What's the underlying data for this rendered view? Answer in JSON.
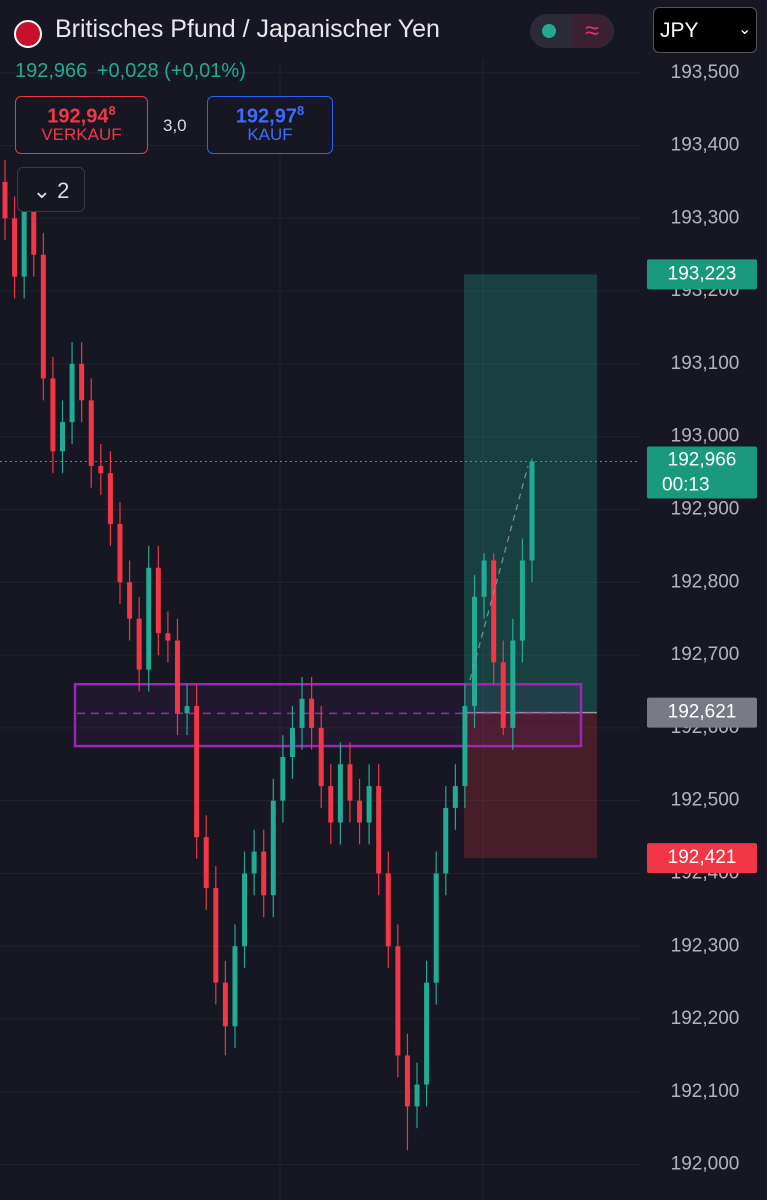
{
  "header": {
    "title": "Britisches Pfund / Japanischer Yen",
    "last": "192,966",
    "change": "+0,028 (+0,01%)",
    "sell_price": "192,94",
    "sell_digit": "8",
    "sell_label": "VERKAUF",
    "spread": "3,0",
    "buy_price": "192,97",
    "buy_digit": "8",
    "buy_label": "KAUF",
    "indicator_count": "2",
    "currency": "JPY"
  },
  "chart_data": {
    "type": "candlestick",
    "up_color": "#22ab94",
    "down_color": "#f23645",
    "grid": true,
    "ylim": [
      191.95,
      193.6
    ],
    "yticks": [
      {
        "value": 192.0,
        "label": "192,000"
      },
      {
        "value": 192.1,
        "label": "192,100"
      },
      {
        "value": 192.2,
        "label": "192,200"
      },
      {
        "value": 192.3,
        "label": "192,300"
      },
      {
        "value": 192.4,
        "label": "192,400"
      },
      {
        "value": 192.5,
        "label": "192,500"
      },
      {
        "value": 192.6,
        "label": "192,600"
      },
      {
        "value": 192.7,
        "label": "192,700"
      },
      {
        "value": 192.8,
        "label": "192,800"
      },
      {
        "value": 192.9,
        "label": "192,900"
      },
      {
        "value": 193.0,
        "label": "193,000"
      },
      {
        "value": 193.1,
        "label": "193,100"
      },
      {
        "value": 193.2,
        "label": "193,200"
      },
      {
        "value": 193.3,
        "label": "193,300"
      },
      {
        "value": 193.4,
        "label": "193,400"
      },
      {
        "value": 193.5,
        "label": "193,500"
      }
    ],
    "open": [
      193.35,
      193.3,
      193.22,
      193.32,
      193.25,
      193.08,
      192.98,
      193.02,
      193.1,
      193.05,
      192.96,
      192.95,
      192.88,
      192.8,
      192.75,
      192.68,
      192.82,
      192.73,
      192.72,
      192.62,
      192.63,
      192.45,
      192.38,
      192.25,
      192.19,
      192.3,
      192.4,
      192.43,
      192.37,
      192.5,
      192.56,
      192.6,
      192.64,
      192.6,
      192.52,
      192.47,
      192.55,
      192.5,
      192.47,
      192.52,
      192.4,
      192.3,
      192.15,
      192.08,
      192.11,
      192.25,
      192.4,
      192.49,
      192.52,
      192.63,
      192.78,
      192.83,
      192.69,
      192.6,
      192.72,
      192.83
    ],
    "high": [
      193.38,
      193.33,
      193.35,
      193.35,
      193.28,
      193.11,
      193.05,
      193.13,
      193.13,
      193.08,
      192.99,
      192.98,
      192.91,
      192.83,
      192.78,
      192.85,
      192.85,
      192.76,
      192.75,
      192.66,
      192.66,
      192.48,
      192.41,
      192.28,
      192.33,
      192.43,
      192.46,
      192.46,
      192.53,
      192.59,
      192.63,
      192.67,
      192.67,
      192.63,
      192.55,
      192.58,
      192.58,
      192.53,
      192.55,
      192.55,
      192.43,
      192.33,
      192.18,
      192.14,
      192.28,
      192.43,
      192.52,
      192.55,
      192.66,
      192.81,
      192.84,
      192.84,
      192.72,
      192.75,
      192.86,
      192.97
    ],
    "low": [
      193.27,
      193.19,
      193.19,
      193.22,
      193.05,
      192.95,
      192.95,
      192.99,
      193.02,
      192.93,
      192.92,
      192.85,
      192.77,
      192.72,
      192.65,
      192.65,
      192.7,
      192.69,
      192.59,
      192.59,
      192.42,
      192.35,
      192.22,
      192.15,
      192.16,
      192.27,
      192.37,
      192.34,
      192.34,
      192.47,
      192.53,
      192.57,
      192.57,
      192.49,
      192.44,
      192.44,
      192.47,
      192.44,
      192.44,
      192.37,
      192.27,
      192.12,
      192.02,
      192.05,
      192.08,
      192.22,
      192.37,
      192.46,
      192.49,
      192.6,
      192.75,
      192.66,
      192.59,
      192.57,
      192.69,
      192.8
    ],
    "close": [
      193.3,
      193.22,
      193.32,
      193.25,
      193.08,
      192.98,
      193.02,
      193.1,
      193.05,
      192.96,
      192.95,
      192.88,
      192.8,
      192.75,
      192.68,
      192.82,
      192.73,
      192.72,
      192.62,
      192.63,
      192.45,
      192.38,
      192.25,
      192.19,
      192.3,
      192.4,
      192.43,
      192.37,
      192.5,
      192.56,
      192.6,
      192.64,
      192.6,
      192.52,
      192.47,
      192.55,
      192.5,
      192.47,
      192.52,
      192.4,
      192.3,
      192.15,
      192.08,
      192.11,
      192.25,
      192.4,
      192.49,
      192.52,
      192.63,
      192.78,
      192.83,
      192.69,
      192.6,
      192.72,
      192.83,
      192.966
    ],
    "zone": {
      "top": 192.66,
      "bottom": 192.575,
      "mid": 192.62,
      "color": "#9c27b0"
    },
    "position": {
      "target": {
        "value": 193.223,
        "label": "193,223"
      },
      "entry": {
        "value": 192.621,
        "label": "192,621"
      },
      "stop": {
        "value": 192.421,
        "label": "192,421"
      }
    },
    "current": {
      "value": 192.966,
      "label": "192,966",
      "countdown": "00:13"
    }
  }
}
